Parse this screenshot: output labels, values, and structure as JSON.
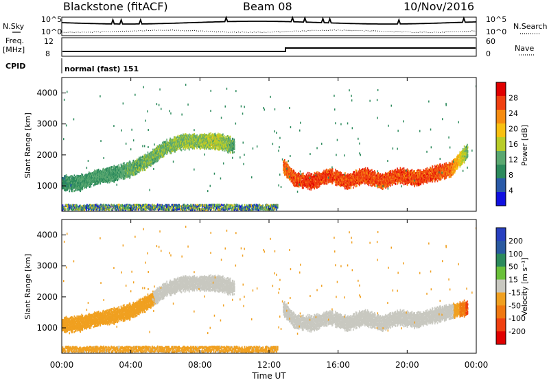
{
  "header": {
    "station": "Blackstone (fitACF)",
    "beam": "Beam 08",
    "date": "10/Nov/2016"
  },
  "summary": {
    "nsky_label": "N.Sky",
    "nsearch_label": "N.Search",
    "freq_label_line1": "Freq.",
    "freq_label_line2": "[MHz]",
    "nave_label": "Nave",
    "cpid_label": "CPID",
    "cpid_value": "normal (fast) 151",
    "noise_ticks_left": [
      "10^5",
      "10^0"
    ],
    "noise_ticks_right": [
      "10^5",
      "10^0"
    ],
    "freq_ticks": [
      "12",
      "8"
    ],
    "nave_ticks": [
      "60",
      "0"
    ]
  },
  "axes": {
    "ylabel": "Slant Range [km]",
    "xlabel": "Time UT",
    "y_ticks": [
      "4000",
      "3000",
      "2000",
      "1000"
    ],
    "x_ticks": [
      "00:00",
      "04:00",
      "08:00",
      "12:00",
      "16:00",
      "20:00",
      "00:00"
    ]
  },
  "power_colorbar": {
    "title": "Power [dB]",
    "ticks": [
      "28",
      "24",
      "20",
      "16",
      "12",
      "8",
      "4"
    ],
    "colors": [
      "#e00000",
      "#f04010",
      "#f68c10",
      "#f8c010",
      "#b8cc28",
      "#5aa870",
      "#2c8a5c",
      "#2a5aa8",
      "#1010e0"
    ]
  },
  "velocity_colorbar": {
    "title": "Velocity [m s⁻¹]",
    "ticks": [
      "200",
      "100",
      "50",
      "15",
      "-15",
      "-50",
      "-100",
      "-200"
    ],
    "colors": [
      "#2840c0",
      "#2a5aa0",
      "#2c8a5c",
      "#6ac03a",
      "#c8c8c0",
      "#f0a020",
      "#f07810",
      "#f04010",
      "#e00000"
    ]
  },
  "chart_data": [
    {
      "type": "heatmap",
      "title": "Power",
      "xlabel": "Time UT",
      "ylabel": "Slant Range [km]",
      "x_range_hours": [
        0,
        24
      ],
      "y_range_km": [
        180,
        4500
      ],
      "colorbar_range_dB": [
        0,
        30
      ],
      "scatter_band_points": [
        {
          "t": 0.0,
          "r": 1150,
          "v": 8
        },
        {
          "t": 1.0,
          "r": 1150,
          "v": 9
        },
        {
          "t": 2.0,
          "r": 1350,
          "v": 10
        },
        {
          "t": 3.0,
          "r": 1450,
          "v": 10
        },
        {
          "t": 4.0,
          "r": 1600,
          "v": 11
        },
        {
          "t": 5.0,
          "r": 1900,
          "v": 12
        },
        {
          "t": 6.0,
          "r": 2300,
          "v": 12
        },
        {
          "t": 7.0,
          "r": 2500,
          "v": 13
        },
        {
          "t": 8.0,
          "r": 2500,
          "v": 14
        },
        {
          "t": 9.0,
          "r": 2500,
          "v": 15
        },
        {
          "t": 10.0,
          "r": 2350,
          "v": 10
        },
        {
          "t": 12.8,
          "r": 1700,
          "v": 24
        },
        {
          "t": 13.5,
          "r": 1250,
          "v": 26
        },
        {
          "t": 14.5,
          "r": 1200,
          "v": 27
        },
        {
          "t": 15.5,
          "r": 1400,
          "v": 26
        },
        {
          "t": 16.5,
          "r": 1200,
          "v": 26
        },
        {
          "t": 17.5,
          "r": 1400,
          "v": 26
        },
        {
          "t": 18.5,
          "r": 1200,
          "v": 26
        },
        {
          "t": 19.5,
          "r": 1400,
          "v": 26
        },
        {
          "t": 20.5,
          "r": 1300,
          "v": 26
        },
        {
          "t": 21.5,
          "r": 1450,
          "v": 26
        },
        {
          "t": 22.5,
          "r": 1600,
          "v": 24
        },
        {
          "t": 23.5,
          "r": 2200,
          "v": 12
        }
      ],
      "near_range_band": {
        "t_start": 0,
        "t_end": 12.5,
        "r": 250,
        "v": 9
      }
    },
    {
      "type": "heatmap",
      "title": "Velocity",
      "xlabel": "Time UT",
      "ylabel": "Slant Range [km]",
      "x_range_hours": [
        0,
        24
      ],
      "y_range_km": [
        180,
        4500
      ],
      "colorbar_range_ms": [
        -250,
        250
      ],
      "scatter_band_points": [
        {
          "t": 0.0,
          "r": 1150,
          "v": -40
        },
        {
          "t": 1.0,
          "r": 1200,
          "v": -45
        },
        {
          "t": 2.0,
          "r": 1350,
          "v": -45
        },
        {
          "t": 3.0,
          "r": 1450,
          "v": -50
        },
        {
          "t": 4.0,
          "r": 1600,
          "v": -50
        },
        {
          "t": 5.0,
          "r": 1900,
          "v": -40
        },
        {
          "t": 6.0,
          "r": 2300,
          "v": -10
        },
        {
          "t": 7.0,
          "r": 2500,
          "v": 0
        },
        {
          "t": 8.0,
          "r": 2500,
          "v": 0
        },
        {
          "t": 9.0,
          "r": 2500,
          "v": 0
        },
        {
          "t": 10.0,
          "r": 2350,
          "v": 0
        },
        {
          "t": 12.8,
          "r": 1700,
          "v": 20
        },
        {
          "t": 13.5,
          "r": 1250,
          "v": 0
        },
        {
          "t": 14.5,
          "r": 1200,
          "v": 0
        },
        {
          "t": 15.5,
          "r": 1400,
          "v": 0
        },
        {
          "t": 16.5,
          "r": 1200,
          "v": 0
        },
        {
          "t": 17.5,
          "r": 1400,
          "v": 0
        },
        {
          "t": 18.5,
          "r": 1200,
          "v": 0
        },
        {
          "t": 19.5,
          "r": 1400,
          "v": 0
        },
        {
          "t": 20.5,
          "r": 1300,
          "v": 0
        },
        {
          "t": 21.5,
          "r": 1450,
          "v": 0
        },
        {
          "t": 22.5,
          "r": 1600,
          "v": 0
        },
        {
          "t": 23.5,
          "r": 1700,
          "v": -180
        }
      ],
      "near_range_band": {
        "t_start": 0,
        "t_end": 12.5,
        "r": 250,
        "v": -40
      }
    }
  ]
}
